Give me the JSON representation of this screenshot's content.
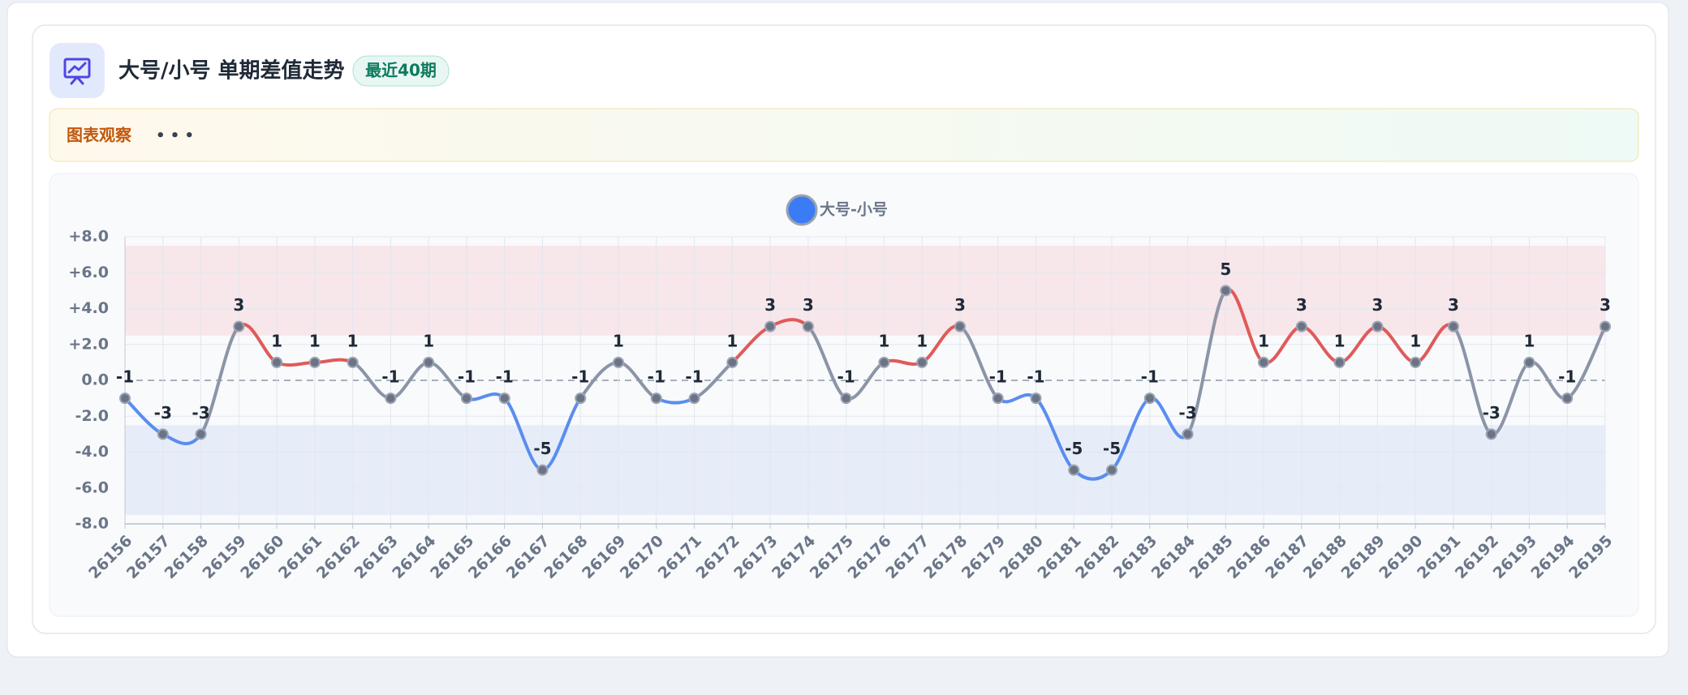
{
  "header": {
    "title": "大号/小号 单期差值走势",
    "badge": "最近40期"
  },
  "observation": {
    "label": "图表观察",
    "text": "• • •"
  },
  "chart_data": {
    "type": "line",
    "categories": [
      "26156",
      "26157",
      "26158",
      "26159",
      "26160",
      "26161",
      "26162",
      "26163",
      "26164",
      "26165",
      "26166",
      "26167",
      "26168",
      "26169",
      "26170",
      "26171",
      "26172",
      "26173",
      "26174",
      "26175",
      "26176",
      "26177",
      "26178",
      "26179",
      "26180",
      "26181",
      "26182",
      "26183",
      "26184",
      "26185",
      "26186",
      "26187",
      "26188",
      "26189",
      "26190",
      "26191",
      "26192",
      "26193",
      "26194",
      "26195"
    ],
    "series": [
      {
        "name": "大号-小号",
        "color": "#3b7cf6",
        "values": [
          -1,
          -3,
          -3,
          3,
          1,
          1,
          1,
          -1,
          1,
          -1,
          -1,
          -5,
          -1,
          1,
          -1,
          -1,
          1,
          3,
          3,
          -1,
          1,
          1,
          3,
          -1,
          -1,
          -5,
          -5,
          -1,
          -3,
          5,
          1,
          3,
          1,
          3,
          1,
          3,
          -3,
          1,
          -1,
          3
        ]
      }
    ],
    "ylim": [
      -8,
      8
    ],
    "yticks": [
      {
        "value": -8,
        "label": "-8.0"
      },
      {
        "value": -6,
        "label": "-6.0"
      },
      {
        "value": -4,
        "label": "-4.0"
      },
      {
        "value": -2,
        "label": "-2.0"
      },
      {
        "value": 0,
        "label": "0.0"
      },
      {
        "value": 2,
        "label": "+2.0"
      },
      {
        "value": 4,
        "label": "+4.0"
      },
      {
        "value": 6,
        "label": "+6.0"
      },
      {
        "value": 8,
        "label": "+8.0"
      }
    ],
    "grid": true,
    "segment_colors": {
      "positive": "#e05a5a",
      "negative": "#5b8def",
      "mixed": "#8b95a7"
    },
    "bands": [
      {
        "from": 2.5,
        "to": 7.5,
        "color": "#f7e6ea"
      },
      {
        "from": -7.5,
        "to": -2.5,
        "color": "#e6edf9"
      }
    ]
  }
}
